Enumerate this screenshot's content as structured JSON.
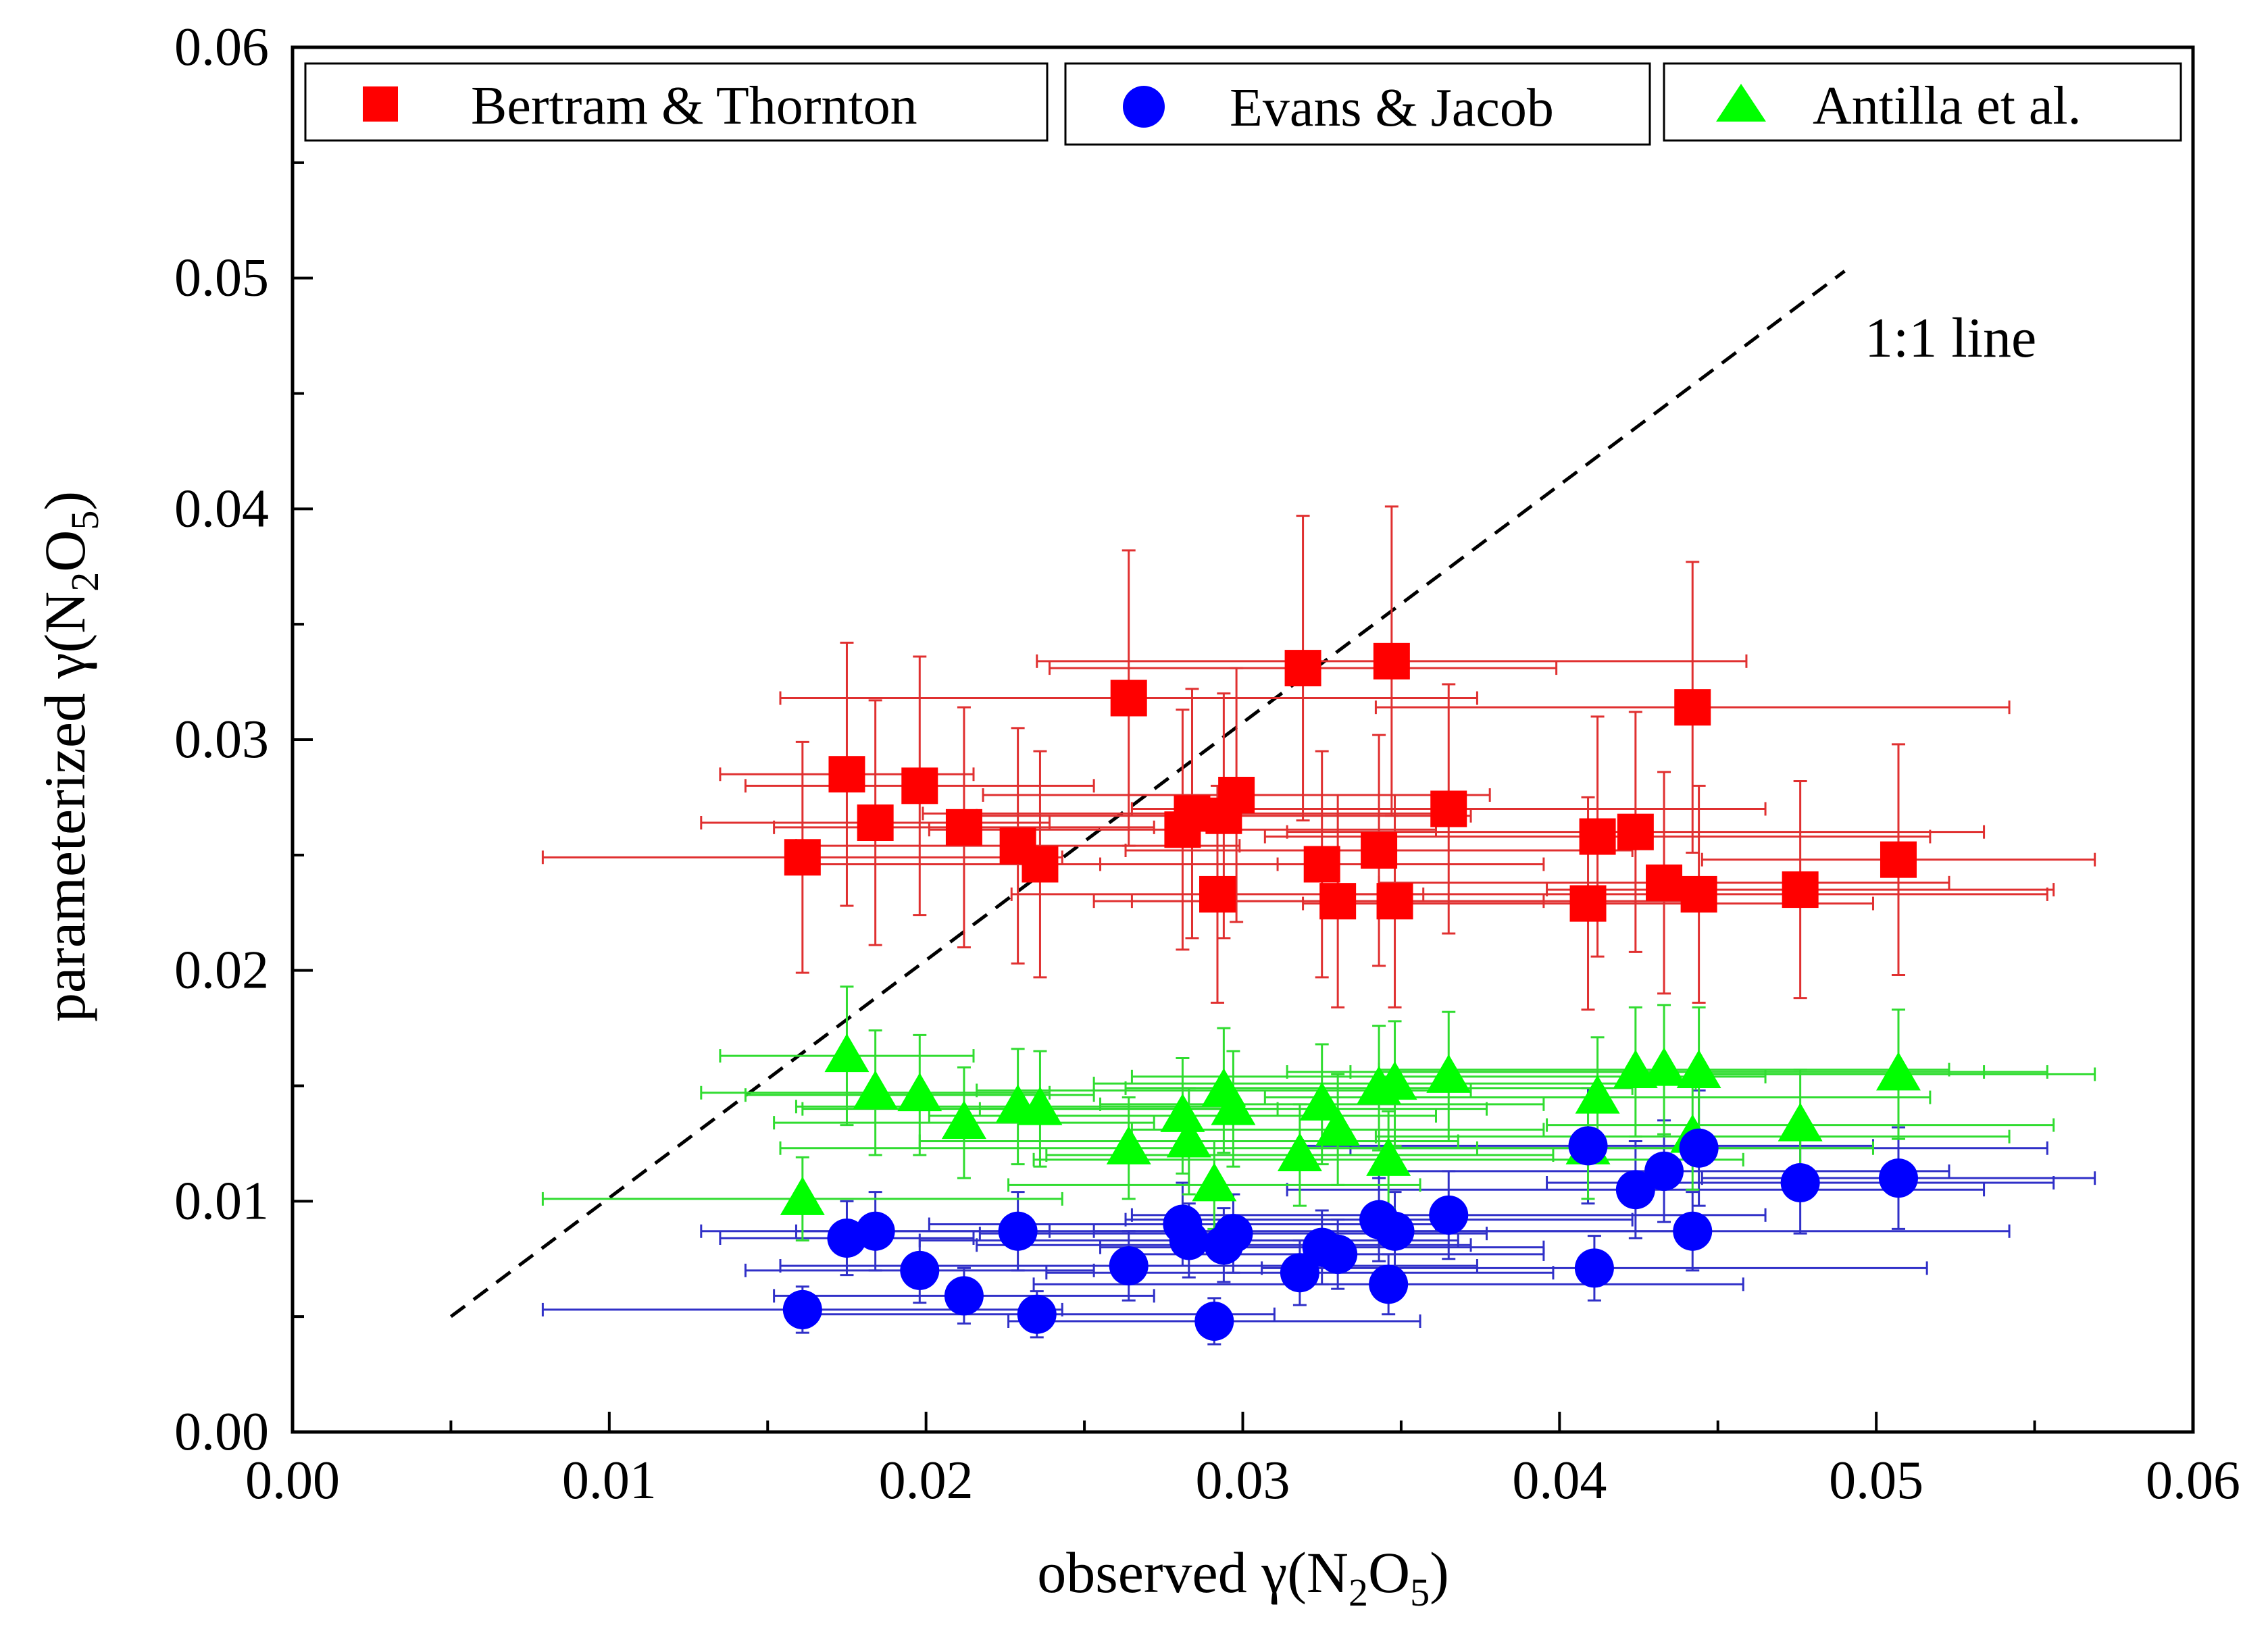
{
  "chart_data": {
    "type": "scatter",
    "xlabel": "observed γ(N2O5)",
    "ylabel": "parameterized γ(N2O5)",
    "xlabel_parts": {
      "prefix": "observed γ(N",
      "sub1": "2",
      "mid": "O",
      "sub2": "5",
      "suffix": ")"
    },
    "ylabel_parts": {
      "prefix": "parameterized γ(N",
      "sub1": "2",
      "mid": "O",
      "sub2": "5",
      "suffix": ")"
    },
    "xlim": [
      0,
      0.06
    ],
    "ylim": [
      0,
      0.06
    ],
    "xticks": [
      "0.00",
      "0.01",
      "0.02",
      "0.03",
      "0.04",
      "0.05",
      "0.06"
    ],
    "yticks": [
      "0.00",
      "0.01",
      "0.02",
      "0.03",
      "0.04",
      "0.05",
      "0.06"
    ],
    "reference_line": {
      "label": "1:1 line",
      "x": [
        0.005,
        0.049
      ],
      "y": [
        0.005,
        0.0503
      ]
    },
    "legend_position": "top",
    "series": [
      {
        "name": "Bertram & Thornton",
        "marker": "square",
        "color": "#ff0000",
        "errorbar_color": "#e03030",
        "points": [
          {
            "x": 0.0161,
            "y": 0.0249,
            "xerr": 0.0082,
            "yerr": 0.005
          },
          {
            "x": 0.0175,
            "y": 0.0285,
            "xerr": 0.004,
            "yerr": 0.0057
          },
          {
            "x": 0.0184,
            "y": 0.0264,
            "xerr": 0.0055,
            "yerr": 0.0053
          },
          {
            "x": 0.0198,
            "y": 0.028,
            "xerr": 0.0055,
            "yerr": 0.0056
          },
          {
            "x": 0.0212,
            "y": 0.0262,
            "xerr": 0.006,
            "yerr": 0.0052
          },
          {
            "x": 0.0229,
            "y": 0.0254,
            "xerr": 0.007,
            "yerr": 0.0051
          },
          {
            "x": 0.0236,
            "y": 0.0246,
            "xerr": 0.0075,
            "yerr": 0.0049
          },
          {
            "x": 0.0264,
            "y": 0.0318,
            "xerr": 0.011,
            "yerr": 0.0064
          },
          {
            "x": 0.0281,
            "y": 0.0261,
            "xerr": 0.008,
            "yerr": 0.0052
          },
          {
            "x": 0.0284,
            "y": 0.0268,
            "xerr": 0.0085,
            "yerr": 0.0054
          },
          {
            "x": 0.0292,
            "y": 0.0233,
            "xerr": 0.0065,
            "yerr": 0.0047
          },
          {
            "x": 0.0294,
            "y": 0.0267,
            "xerr": 0.0078,
            "yerr": 0.0053
          },
          {
            "x": 0.0298,
            "y": 0.0276,
            "xerr": 0.008,
            "yerr": 0.0055
          },
          {
            "x": 0.0319,
            "y": 0.0331,
            "xerr": 0.008,
            "yerr": 0.0066
          },
          {
            "x": 0.0325,
            "y": 0.0246,
            "xerr": 0.007,
            "yerr": 0.0049
          },
          {
            "x": 0.033,
            "y": 0.023,
            "xerr": 0.0065,
            "yerr": 0.0046
          },
          {
            "x": 0.0343,
            "y": 0.0252,
            "xerr": 0.008,
            "yerr": 0.005
          },
          {
            "x": 0.0347,
            "y": 0.0334,
            "xerr": 0.0112,
            "yerr": 0.0067
          },
          {
            "x": 0.0348,
            "y": 0.023,
            "xerr": 0.0095,
            "yerr": 0.0046
          },
          {
            "x": 0.0365,
            "y": 0.027,
            "xerr": 0.01,
            "yerr": 0.0054
          },
          {
            "x": 0.0409,
            "y": 0.0229,
            "xerr": 0.009,
            "yerr": 0.0046
          },
          {
            "x": 0.0412,
            "y": 0.0258,
            "xerr": 0.0105,
            "yerr": 0.0052
          },
          {
            "x": 0.0424,
            "y": 0.026,
            "xerr": 0.011,
            "yerr": 0.0052
          },
          {
            "x": 0.0433,
            "y": 0.0238,
            "xerr": 0.009,
            "yerr": 0.0048
          },
          {
            "x": 0.0442,
            "y": 0.0314,
            "xerr": 0.01,
            "yerr": 0.0063
          },
          {
            "x": 0.0444,
            "y": 0.0233,
            "xerr": 0.011,
            "yerr": 0.0047
          },
          {
            "x": 0.0476,
            "y": 0.0235,
            "xerr": 0.008,
            "yerr": 0.0047
          },
          {
            "x": 0.0507,
            "y": 0.0248,
            "xerr": 0.0062,
            "yerr": 0.005
          }
        ]
      },
      {
        "name": "Evans & Jacob",
        "marker": "circle",
        "color": "#0000ff",
        "errorbar_color": "#3030c8",
        "points": [
          {
            "x": 0.0161,
            "y": 0.0053,
            "xerr": 0.0082,
            "yerr": 0.001
          },
          {
            "x": 0.0175,
            "y": 0.0084,
            "xerr": 0.004,
            "yerr": 0.0016
          },
          {
            "x": 0.0184,
            "y": 0.0087,
            "xerr": 0.0055,
            "yerr": 0.0017
          },
          {
            "x": 0.0198,
            "y": 0.007,
            "xerr": 0.0055,
            "yerr": 0.0014
          },
          {
            "x": 0.0212,
            "y": 0.0059,
            "xerr": 0.006,
            "yerr": 0.0012
          },
          {
            "x": 0.0229,
            "y": 0.0087,
            "xerr": 0.007,
            "yerr": 0.0017
          },
          {
            "x": 0.0235,
            "y": 0.0051,
            "xerr": 0.0075,
            "yerr": 0.001
          },
          {
            "x": 0.0264,
            "y": 0.0072,
            "xerr": 0.011,
            "yerr": 0.0015
          },
          {
            "x": 0.0281,
            "y": 0.009,
            "xerr": 0.008,
            "yerr": 0.0018
          },
          {
            "x": 0.0283,
            "y": 0.0083,
            "xerr": 0.0085,
            "yerr": 0.0016
          },
          {
            "x": 0.0291,
            "y": 0.0048,
            "xerr": 0.0065,
            "yerr": 0.001
          },
          {
            "x": 0.0294,
            "y": 0.0081,
            "xerr": 0.0078,
            "yerr": 0.0016
          },
          {
            "x": 0.0297,
            "y": 0.0086,
            "xerr": 0.008,
            "yerr": 0.0017
          },
          {
            "x": 0.0318,
            "y": 0.0069,
            "xerr": 0.008,
            "yerr": 0.0014
          },
          {
            "x": 0.0325,
            "y": 0.008,
            "xerr": 0.007,
            "yerr": 0.0016
          },
          {
            "x": 0.033,
            "y": 0.0077,
            "xerr": 0.0065,
            "yerr": 0.0015
          },
          {
            "x": 0.0343,
            "y": 0.0092,
            "xerr": 0.008,
            "yerr": 0.0018
          },
          {
            "x": 0.0346,
            "y": 0.0064,
            "xerr": 0.0112,
            "yerr": 0.0013
          },
          {
            "x": 0.0348,
            "y": 0.0087,
            "xerr": 0.0095,
            "yerr": 0.0017
          },
          {
            "x": 0.0365,
            "y": 0.0094,
            "xerr": 0.01,
            "yerr": 0.0019
          },
          {
            "x": 0.0409,
            "y": 0.0124,
            "xerr": 0.009,
            "yerr": 0.0025
          },
          {
            "x": 0.0411,
            "y": 0.0071,
            "xerr": 0.0105,
            "yerr": 0.0014
          },
          {
            "x": 0.0424,
            "y": 0.0105,
            "xerr": 0.011,
            "yerr": 0.0021
          },
          {
            "x": 0.0433,
            "y": 0.0113,
            "xerr": 0.009,
            "yerr": 0.0022
          },
          {
            "x": 0.0442,
            "y": 0.0087,
            "xerr": 0.01,
            "yerr": 0.0017
          },
          {
            "x": 0.0444,
            "y": 0.0123,
            "xerr": 0.011,
            "yerr": 0.0025
          },
          {
            "x": 0.0476,
            "y": 0.0108,
            "xerr": 0.008,
            "yerr": 0.0022
          },
          {
            "x": 0.0507,
            "y": 0.011,
            "xerr": 0.0062,
            "yerr": 0.0022
          }
        ]
      },
      {
        "name": "Antilla et al.",
        "marker": "triangle",
        "color": "#00ff00",
        "errorbar_color": "#30dc30",
        "points": [
          {
            "x": 0.0161,
            "y": 0.0101,
            "xerr": 0.0082,
            "yerr": 0.0018
          },
          {
            "x": 0.0175,
            "y": 0.0163,
            "xerr": 0.004,
            "yerr": 0.003
          },
          {
            "x": 0.0184,
            "y": 0.0147,
            "xerr": 0.0055,
            "yerr": 0.0027
          },
          {
            "x": 0.0198,
            "y": 0.0146,
            "xerr": 0.0055,
            "yerr": 0.0026
          },
          {
            "x": 0.0212,
            "y": 0.0134,
            "xerr": 0.006,
            "yerr": 0.0024
          },
          {
            "x": 0.0229,
            "y": 0.0141,
            "xerr": 0.007,
            "yerr": 0.0025
          },
          {
            "x": 0.0236,
            "y": 0.014,
            "xerr": 0.0075,
            "yerr": 0.0025
          },
          {
            "x": 0.0264,
            "y": 0.0123,
            "xerr": 0.011,
            "yerr": 0.0022
          },
          {
            "x": 0.0281,
            "y": 0.0137,
            "xerr": 0.008,
            "yerr": 0.0025
          },
          {
            "x": 0.0283,
            "y": 0.0126,
            "xerr": 0.0085,
            "yerr": 0.0023
          },
          {
            "x": 0.0291,
            "y": 0.0107,
            "xerr": 0.0065,
            "yerr": 0.0019
          },
          {
            "x": 0.0294,
            "y": 0.0148,
            "xerr": 0.0078,
            "yerr": 0.0027
          },
          {
            "x": 0.0297,
            "y": 0.014,
            "xerr": 0.008,
            "yerr": 0.0025
          },
          {
            "x": 0.0318,
            "y": 0.012,
            "xerr": 0.008,
            "yerr": 0.0022
          },
          {
            "x": 0.0325,
            "y": 0.0142,
            "xerr": 0.007,
            "yerr": 0.0026
          },
          {
            "x": 0.033,
            "y": 0.0131,
            "xerr": 0.0065,
            "yerr": 0.0024
          },
          {
            "x": 0.0343,
            "y": 0.0149,
            "xerr": 0.008,
            "yerr": 0.0027
          },
          {
            "x": 0.0346,
            "y": 0.0118,
            "xerr": 0.0112,
            "yerr": 0.0021
          },
          {
            "x": 0.0348,
            "y": 0.0151,
            "xerr": 0.0095,
            "yerr": 0.0027
          },
          {
            "x": 0.0365,
            "y": 0.0154,
            "xerr": 0.01,
            "yerr": 0.0028
          },
          {
            "x": 0.0409,
            "y": 0.0123,
            "xerr": 0.009,
            "yerr": 0.0022
          },
          {
            "x": 0.0412,
            "y": 0.0145,
            "xerr": 0.0105,
            "yerr": 0.0026
          },
          {
            "x": 0.0424,
            "y": 0.0156,
            "xerr": 0.011,
            "yerr": 0.0028
          },
          {
            "x": 0.0433,
            "y": 0.0157,
            "xerr": 0.009,
            "yerr": 0.0028
          },
          {
            "x": 0.0442,
            "y": 0.0128,
            "xerr": 0.01,
            "yerr": 0.0023
          },
          {
            "x": 0.0444,
            "y": 0.0156,
            "xerr": 0.011,
            "yerr": 0.0028
          },
          {
            "x": 0.0476,
            "y": 0.0133,
            "xerr": 0.008,
            "yerr": 0.0024
          },
          {
            "x": 0.0507,
            "y": 0.0155,
            "xerr": 0.0062,
            "yerr": 0.0028
          }
        ]
      }
    ]
  }
}
